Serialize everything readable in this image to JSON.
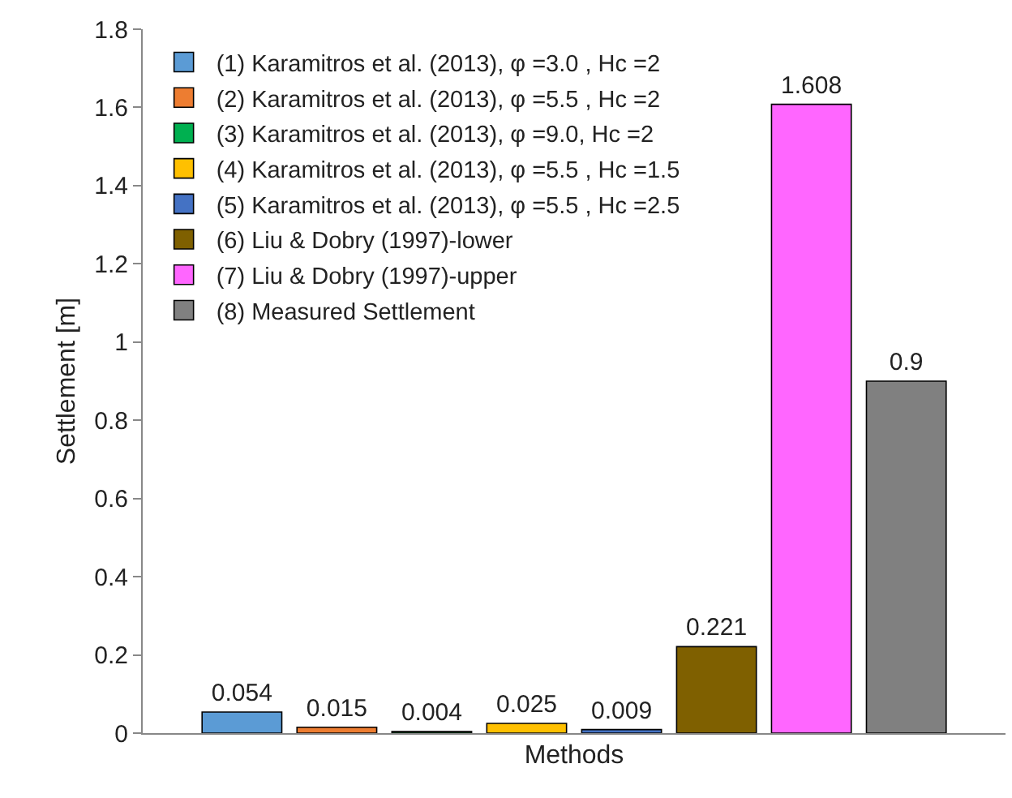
{
  "chart_data": {
    "type": "bar",
    "xlabel": "Methods",
    "ylabel": "Settlement [m]",
    "categories": [
      null
    ],
    "series": [
      {
        "name": "(1) Karamitros et al. (2013), φ =3.0 , Hc =2",
        "color": "#5b9bd5",
        "values": [
          0.054
        ]
      },
      {
        "name": "(2) Karamitros et al. (2013), φ =5.5 , Hc =2",
        "color": "#ed7d31",
        "values": [
          0.015
        ]
      },
      {
        "name": "(3) Karamitros et al. (2013), φ =9.0, Hc =2",
        "color": "#00b050",
        "values": [
          0.004
        ]
      },
      {
        "name": "(4) Karamitros et al. (2013), φ =5.5 , Hc =1.5",
        "color": "#ffc000",
        "values": [
          0.025
        ]
      },
      {
        "name": "(5) Karamitros et al. (2013), φ =5.5 , Hc =2.5",
        "color": "#4472c4",
        "values": [
          0.009
        ]
      },
      {
        "name": "(6) Liu & Dobry (1997)-lower",
        "color": "#7f6000",
        "values": [
          0.221
        ]
      },
      {
        "name": "(7) Liu & Dobry (1997)-upper",
        "color": "#ff66ff",
        "values": [
          1.608
        ]
      },
      {
        "name": "(8) Measured Settlement",
        "color": "#808080",
        "values": [
          0.9
        ]
      }
    ],
    "ylim": [
      0,
      1.8
    ],
    "yticks": [
      0,
      0.2,
      0.4,
      0.6,
      0.8,
      1,
      1.2,
      1.4,
      1.6,
      1.8
    ],
    "data_labels": true,
    "grid": false,
    "legend": "top left"
  }
}
